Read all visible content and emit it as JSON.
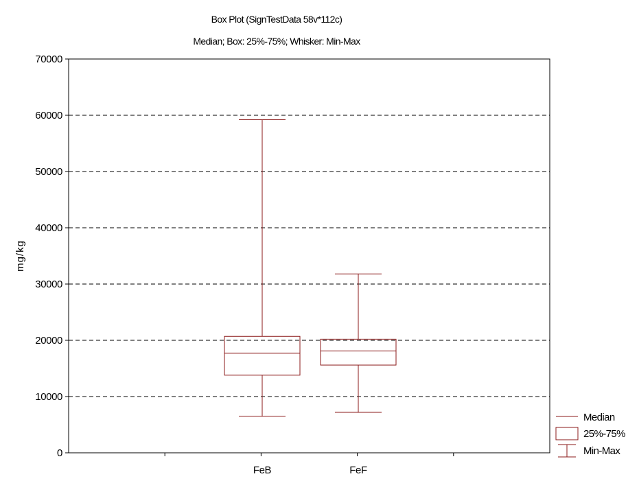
{
  "chart_data": {
    "type": "box",
    "title": "Box Plot (SignTestData 58v*112c)",
    "subtitle": "Median; Box: 25%-75%; Whisker: Min-Max",
    "xlabel": "",
    "ylabel": "mg/kg",
    "ylim": [
      0,
      70000
    ],
    "yticks": [
      0,
      10000,
      20000,
      30000,
      40000,
      50000,
      60000,
      70000
    ],
    "ytick_labels": [
      "0",
      "10000",
      "20000",
      "30000",
      "40000",
      "50000",
      "60000",
      "70000"
    ],
    "grid": "horizontal-dashed",
    "categories": [
      "FeB",
      "FeF"
    ],
    "boxes": [
      {
        "category": "FeB",
        "min": 6500,
        "q1": 13800,
        "median": 17700,
        "q3": 20700,
        "max": 59200
      },
      {
        "category": "FeF",
        "min": 7200,
        "q1": 15600,
        "median": 18100,
        "q3": 20200,
        "max": 31800
      }
    ],
    "legend": {
      "placement": "bottom-right",
      "entries": [
        "Median",
        "25%-75%",
        "Min-Max"
      ]
    },
    "colors": {
      "box": "#8b1a1a",
      "grid": "#000000",
      "axis": "#000000"
    }
  }
}
